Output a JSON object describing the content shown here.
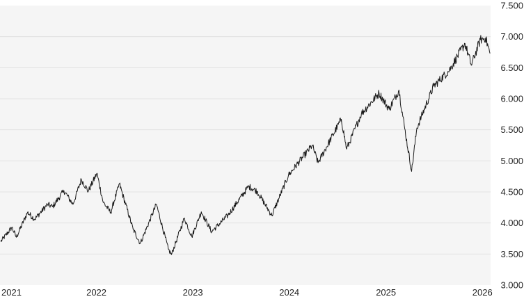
{
  "chart_data": {
    "type": "line",
    "title": "",
    "xlabel": "",
    "ylabel": "",
    "x_ticks": [
      "2021",
      "2022",
      "2023",
      "2024",
      "2025",
      "2026"
    ],
    "y_ticks": [
      "3.000",
      "3.500",
      "4.000",
      "4.500",
      "5.000",
      "5.500",
      "6.000",
      "6.500",
      "7.000",
      "7.500"
    ],
    "xlim": [
      "2021-01-01",
      "2026-02-01"
    ],
    "ylim": [
      3000,
      7500
    ],
    "grid": "horizontal",
    "y_axis_position": "right",
    "series": [
      {
        "color": "#1a1a1a",
        "points": [
          [
            "2021-01-04",
            3700
          ],
          [
            "2021-02-15",
            3930
          ],
          [
            "2021-03-04",
            3770
          ],
          [
            "2021-04-15",
            4170
          ],
          [
            "2021-05-12",
            4060
          ],
          [
            "2021-06-30",
            4300
          ],
          [
            "2021-07-19",
            4260
          ],
          [
            "2021-08-31",
            4520
          ],
          [
            "2021-10-04",
            4300
          ],
          [
            "2021-11-05",
            4700
          ],
          [
            "2021-12-01",
            4510
          ],
          [
            "2022-01-03",
            4800
          ],
          [
            "2022-01-27",
            4330
          ],
          [
            "2022-02-24",
            4170
          ],
          [
            "2022-03-29",
            4630
          ],
          [
            "2022-05-20",
            3900
          ],
          [
            "2022-06-16",
            3670
          ],
          [
            "2022-08-16",
            4300
          ],
          [
            "2022-09-30",
            3580
          ],
          [
            "2022-10-12",
            3490
          ],
          [
            "2022-11-30",
            4080
          ],
          [
            "2022-12-28",
            3780
          ],
          [
            "2023-02-02",
            4180
          ],
          [
            "2023-03-13",
            3860
          ],
          [
            "2023-05-15",
            4130
          ],
          [
            "2023-07-31",
            4590
          ],
          [
            "2023-09-01",
            4510
          ],
          [
            "2023-10-27",
            4120
          ],
          [
            "2023-12-29",
            4770
          ],
          [
            "2024-03-28",
            5250
          ],
          [
            "2024-04-19",
            4970
          ],
          [
            "2024-07-16",
            5670
          ],
          [
            "2024-08-05",
            5190
          ],
          [
            "2024-09-30",
            5760
          ],
          [
            "2024-12-06",
            6090
          ],
          [
            "2025-01-13",
            5830
          ],
          [
            "2025-02-19",
            6140
          ],
          [
            "2025-03-13",
            5520
          ],
          [
            "2025-04-08",
            4830
          ],
          [
            "2025-04-28",
            5530
          ],
          [
            "2025-06-30",
            6200
          ],
          [
            "2025-08-29",
            6460
          ],
          [
            "2025-10-27",
            6890
          ],
          [
            "2025-11-20",
            6540
          ],
          [
            "2025-12-24",
            6950
          ],
          [
            "2026-01-13",
            6980
          ],
          [
            "2026-01-30",
            6730
          ]
        ]
      }
    ]
  }
}
